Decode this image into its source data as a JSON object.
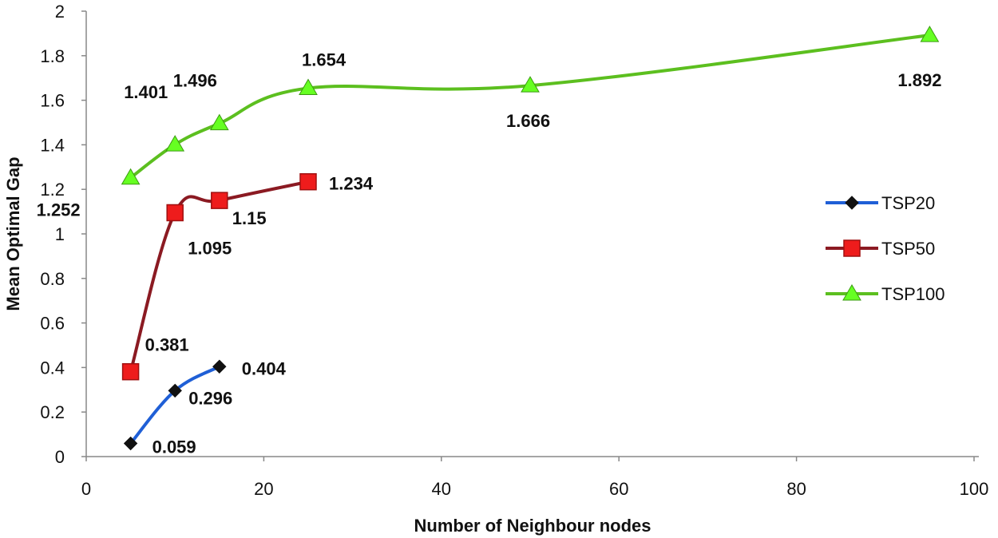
{
  "chart_data": {
    "type": "line",
    "xlabel": "Number of Neighbour nodes",
    "ylabel": "Mean Optimal Gap",
    "xlim": [
      0,
      100
    ],
    "ylim": [
      0,
      2
    ],
    "x_ticks": [
      "0",
      "20",
      "40",
      "60",
      "80",
      "100"
    ],
    "y_ticks": [
      "0",
      "0.2",
      "0.4",
      "0.6",
      "0.8",
      "1",
      "1.2",
      "1.4",
      "1.6",
      "1.8",
      "2"
    ],
    "grid": false,
    "legend_position": "right",
    "series": [
      {
        "name": "TSP20",
        "color": "#1f5fd6",
        "marker": "diamond",
        "x": [
          5,
          10,
          15
        ],
        "y": [
          0.059,
          0.296,
          0.404
        ],
        "labels": [
          "0.059",
          "0.296",
          "0.404"
        ]
      },
      {
        "name": "TSP50",
        "color": "#8b1a22",
        "marker_color": "#ee1c1c",
        "marker": "square",
        "x": [
          5,
          10,
          15,
          25
        ],
        "y": [
          0.381,
          1.095,
          1.15,
          1.234
        ],
        "labels": [
          "0.381",
          "1.095",
          "1.15",
          "1.234"
        ]
      },
      {
        "name": "TSP100",
        "color": "#5cbf1f",
        "marker_color": "#66ff22",
        "marker": "triangle",
        "x": [
          5,
          10,
          15,
          25,
          50,
          95
        ],
        "y": [
          1.252,
          1.401,
          1.496,
          1.654,
          1.666,
          1.892
        ],
        "labels": [
          "1.252",
          "1.401",
          "1.496",
          "1.654",
          "1.666",
          "1.892"
        ]
      }
    ]
  }
}
